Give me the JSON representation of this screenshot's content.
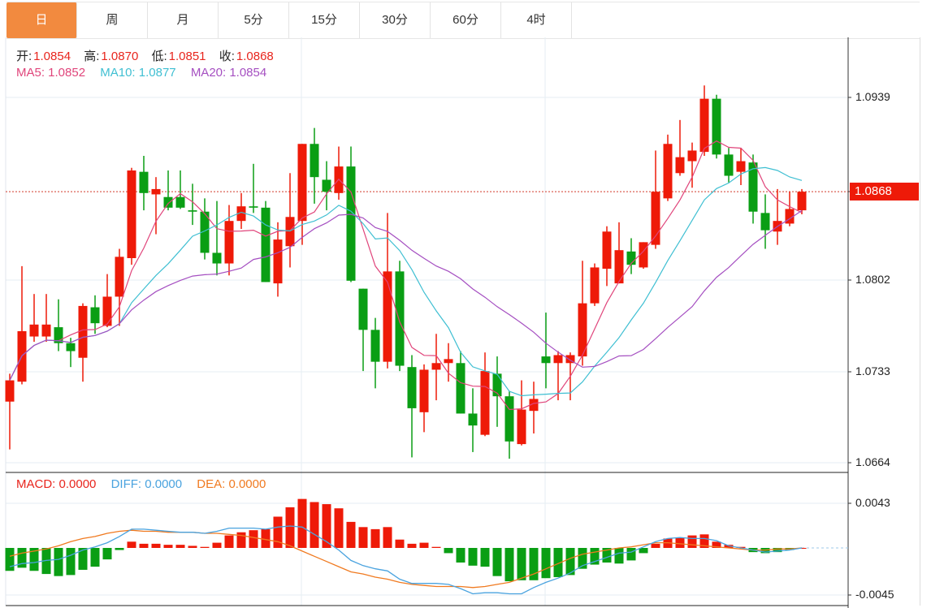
{
  "tabs": [
    {
      "label": "日",
      "active": true
    },
    {
      "label": "周"
    },
    {
      "label": "月"
    },
    {
      "label": "5分"
    },
    {
      "label": "15分"
    },
    {
      "label": "30分"
    },
    {
      "label": "60分"
    },
    {
      "label": "4时"
    }
  ],
  "ohlc_header": {
    "open_label": "开:",
    "open": "1.0854",
    "high_label": "高:",
    "high": "1.0870",
    "low_label": "低:",
    "low": "1.0851",
    "close_label": "收:",
    "close": "1.0868"
  },
  "ma_header": {
    "ma5": "MA5: 1.0852",
    "ma10": "MA10: 1.0877",
    "ma20": "MA20: 1.0854"
  },
  "macd_header": {
    "macd": "MACD: 0.0000",
    "diff": "DIFF: 0.0000",
    "dea": "DEA: 0.0000"
  },
  "colors": {
    "up": "#ee1a08",
    "down": "#0a9e14",
    "ma5": "#e0457b",
    "ma10": "#3fbfd2",
    "ma20": "#a54fc1",
    "diff": "#4aa3df",
    "dea": "#f07a20",
    "accent_tab": "#f28a3f"
  },
  "chart_data": [
    {
      "type": "candlestick",
      "title": "",
      "price_axis_ticks": [
        "1.0939",
        "1.0802",
        "1.0733",
        "1.0664"
      ],
      "ylim": [
        1.0664,
        1.0939
      ],
      "current_price": "1.0868",
      "grid": true,
      "open": [
        1.071,
        1.0725,
        1.0759,
        1.0759,
        1.0766,
        1.0754,
        1.0743,
        1.0781,
        1.0767,
        1.0789,
        1.0818,
        1.0883,
        1.0866,
        1.0864,
        1.0864,
        1.0854,
        1.0853,
        1.0822,
        1.0814,
        1.0846,
        1.0857,
        1.0856,
        1.0799,
        1.0827,
        1.0846,
        1.0904,
        1.0877,
        1.0867,
        1.0887,
        1.0795,
        1.0764,
        1.074,
        1.0808,
        1.0736,
        1.0702,
        1.0734,
        1.0739,
        1.0739,
        1.0701,
        1.0685,
        1.0731,
        1.0714,
        1.0678,
        1.0703,
        1.0744,
        1.0739,
        1.0739,
        1.0744,
        1.0784,
        1.081,
        1.0799,
        1.0823,
        1.0811,
        1.0828,
        1.0863,
        1.0882,
        1.0891,
        1.0898,
        1.0938,
        1.0896,
        1.0883,
        1.089,
        1.0852,
        1.0838,
        1.0844,
        1.0854
      ],
      "high": [
        1.0731,
        1.0812,
        1.0791,
        1.0791,
        1.0787,
        1.0758,
        1.0784,
        1.079,
        1.0806,
        1.0825,
        1.0886,
        1.0895,
        1.0879,
        1.0884,
        1.0884,
        1.0874,
        1.0863,
        1.0861,
        1.0858,
        1.0867,
        1.0889,
        1.0861,
        1.0845,
        1.0882,
        1.0904,
        1.0916,
        1.0891,
        1.0902,
        1.0902,
        1.0795,
        1.0773,
        1.0852,
        1.0816,
        1.0745,
        1.0738,
        1.0761,
        1.0754,
        1.0748,
        1.072,
        1.0747,
        1.0744,
        1.0718,
        1.0726,
        1.0725,
        1.0777,
        1.0748,
        1.0747,
        1.0816,
        1.0814,
        1.0842,
        1.0845,
        1.0833,
        1.083,
        1.0899,
        1.0911,
        1.0922,
        1.0905,
        1.0948,
        1.0941,
        1.0901,
        1.0901,
        1.0896,
        1.0866,
        1.087,
        1.0868,
        1.087
      ],
      "low": [
        1.0674,
        1.0723,
        1.0755,
        1.0755,
        1.0748,
        1.0736,
        1.0725,
        1.0761,
        1.0766,
        1.0767,
        1.0813,
        1.0854,
        1.0836,
        1.0854,
        1.0855,
        1.0843,
        1.0817,
        1.0805,
        1.0805,
        1.084,
        1.0852,
        1.08,
        1.0789,
        1.0811,
        1.0828,
        1.0859,
        1.0854,
        1.0862,
        1.08,
        1.0733,
        1.072,
        1.0735,
        1.0733,
        1.0668,
        1.0687,
        1.0711,
        1.0725,
        1.0701,
        1.0672,
        1.0684,
        1.0691,
        1.0667,
        1.0677,
        1.0686,
        1.072,
        1.0711,
        1.0711,
        1.0737,
        1.0782,
        1.0797,
        1.0799,
        1.0806,
        1.081,
        1.0825,
        1.0861,
        1.088,
        1.0871,
        1.0895,
        1.0893,
        1.0875,
        1.0873,
        1.0844,
        1.0825,
        1.0828,
        1.0842,
        1.0851
      ],
      "close": [
        1.0726,
        1.0763,
        1.0768,
        1.0768,
        1.0754,
        1.0748,
        1.0782,
        1.0769,
        1.0789,
        1.0819,
        1.0884,
        1.0867,
        1.087,
        1.0856,
        1.0856,
        1.0853,
        1.0822,
        1.0814,
        1.0846,
        1.0857,
        1.0856,
        1.08,
        1.0832,
        1.0849,
        1.0904,
        1.0879,
        1.0868,
        1.0887,
        1.0801,
        1.0764,
        1.074,
        1.0808,
        1.0737,
        1.0705,
        1.0734,
        1.0739,
        1.0742,
        1.0701,
        1.0692,
        1.0733,
        1.0714,
        1.068,
        1.0704,
        1.0712,
        1.0739,
        1.0745,
        1.0745,
        1.0784,
        1.0811,
        1.0838,
        1.0824,
        1.0813,
        1.083,
        1.0868,
        1.0904,
        1.0894,
        1.0899,
        1.0938,
        1.0896,
        1.088,
        1.0891,
        1.0853,
        1.0839,
        1.0846,
        1.0855,
        1.0868
      ],
      "moving_averages": [
        "MA5",
        "MA10",
        "MA20"
      ]
    },
    {
      "type": "bar",
      "title": "",
      "axis_ticks": [
        "0.0043",
        "-0.0045"
      ],
      "ylim": [
        -0.0045,
        0.0043
      ],
      "macd": [
        -0.0022,
        -0.0019,
        -0.0022,
        -0.0025,
        -0.0027,
        -0.0026,
        -0.0021,
        -0.0018,
        -0.0011,
        -0.0002,
        0.0006,
        0.0004,
        0.0004,
        0.0003,
        0.0003,
        0.0002,
        0.0001,
        0.0005,
        0.0012,
        0.0015,
        0.0017,
        0.0018,
        0.003,
        0.0039,
        0.0047,
        0.0044,
        0.0042,
        0.0038,
        0.0025,
        0.002,
        0.0018,
        0.002,
        0.0008,
        0.0004,
        0.0005,
        0.0001,
        -0.0005,
        -0.0014,
        -0.0017,
        -0.0018,
        -0.0027,
        -0.0032,
        -0.0031,
        -0.0031,
        -0.0029,
        -0.0028,
        -0.0026,
        -0.002,
        -0.0016,
        -0.0014,
        -0.0015,
        -0.0012,
        -0.0005,
        0.0004,
        0.0009,
        0.001,
        0.0012,
        0.0013,
        0.0006,
        0.0003,
        0.0001,
        -0.0004,
        -0.0005,
        -0.0004,
        -0.0002,
        0.0
      ],
      "diff": [
        -0.0018,
        -0.0015,
        -0.0014,
        -0.0012,
        -0.0011,
        -0.0007,
        -0.0002,
        0.0001,
        0.0005,
        0.0011,
        0.0018,
        0.0018,
        0.0017,
        0.0016,
        0.0015,
        0.0015,
        0.0014,
        0.0016,
        0.0019,
        0.0019,
        0.0019,
        0.0018,
        0.002,
        0.0021,
        0.002,
        0.0013,
        0.0006,
        -0.0002,
        -0.0012,
        -0.0017,
        -0.002,
        -0.0022,
        -0.003,
        -0.0034,
        -0.0034,
        -0.0034,
        -0.0035,
        -0.0039,
        -0.0044,
        -0.0043,
        -0.0043,
        -0.0044,
        -0.0044,
        -0.0038,
        -0.0033,
        -0.0029,
        -0.0024,
        -0.0017,
        -0.0013,
        -0.0009,
        -0.0005,
        -0.0004,
        0.0001,
        0.0006,
        0.0009,
        0.001,
        0.0009,
        0.0009,
        0.0007,
        0.0002,
        0.0,
        -0.0002,
        -0.0004,
        -0.0003,
        -0.0002,
        0.0
      ],
      "dea": [
        -0.0008,
        -0.0005,
        -0.0003,
        -0.0001,
        0.0002,
        0.0006,
        0.0009,
        0.0011,
        0.0014,
        0.0016,
        0.0017,
        0.0016,
        0.0016,
        0.0015,
        0.0015,
        0.0015,
        0.0014,
        0.0014,
        0.0013,
        0.0012,
        0.001,
        0.0008,
        0.0006,
        0.0002,
        -0.0003,
        -0.0008,
        -0.0013,
        -0.0018,
        -0.0023,
        -0.0025,
        -0.0028,
        -0.003,
        -0.0033,
        -0.0035,
        -0.0036,
        -0.0037,
        -0.0037,
        -0.0037,
        -0.0038,
        -0.0037,
        -0.0035,
        -0.0033,
        -0.0029,
        -0.0025,
        -0.002,
        -0.0015,
        -0.001,
        -0.0006,
        -0.0004,
        -0.0002,
        0.0,
        0.0001,
        0.0003,
        0.0005,
        0.0005,
        0.0004,
        0.0003,
        0.0002,
        0.0001,
        0.0,
        -0.0001,
        -0.0002,
        -0.0002,
        -0.0001,
        -0.0001,
        0.0
      ]
    }
  ]
}
